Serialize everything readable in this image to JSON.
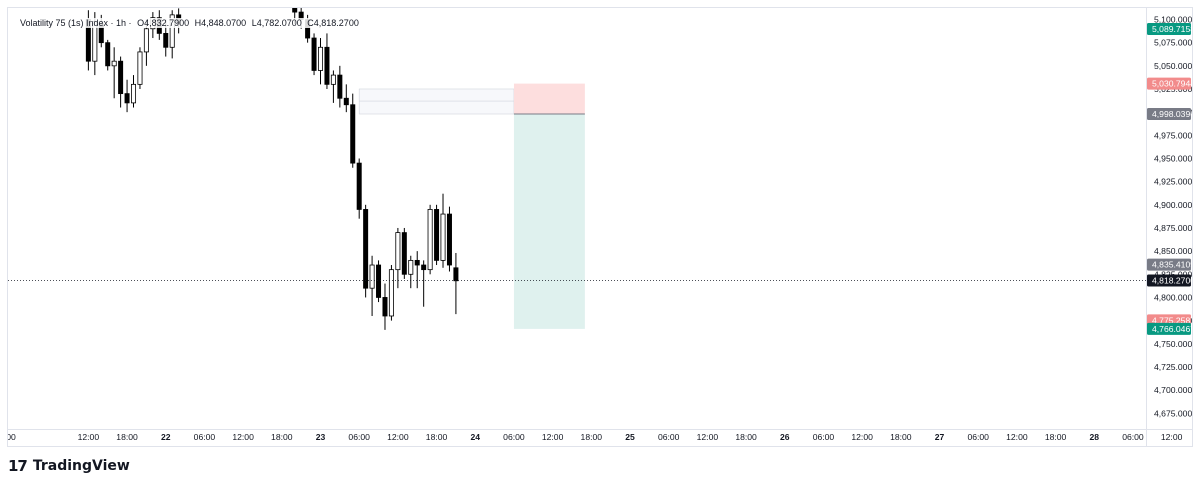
{
  "legend": {
    "symbol": "Volatility 75 (1s) Index · 1h ·",
    "open": "O4,832.7900",
    "high": "H4,848.0700",
    "low": "L4,782.0700",
    "close": "C4,818.2700"
  },
  "branding": {
    "logo_text": "TradingView",
    "logo_icon": "tradingview-logo-icon"
  },
  "colors": {
    "up": "#ffffff",
    "down": "#000000",
    "stop_zone": "#fddede",
    "target_zone": "#dff1ee",
    "green_tag": "#089981",
    "red_tag": "#f28b8b",
    "gray_tag": "#787b86"
  },
  "chart_data": {
    "type": "candlestick",
    "title": "Volatility 75 (1s) Index · 1h",
    "ylim": [
      4655,
      5115
    ],
    "y_ticks": [
      "5,100.0000",
      "5,075.0000",
      "5,050.0000",
      "5,025.0000",
      "5,000.0000",
      "4,975.0000",
      "4,950.0000",
      "4,925.0000",
      "4,900.0000",
      "4,875.0000",
      "4,850.0000",
      "4,825.0000",
      "4,800.0000",
      "4,775.0000",
      "4,750.0000",
      "4,725.0000",
      "4,700.0000",
      "4,675.0000"
    ],
    "y_tick_values": [
      5100,
      5075,
      5050,
      5025,
      5000,
      4975,
      4950,
      4925,
      4900,
      4875,
      4850,
      4825,
      4800,
      4775,
      4750,
      4725,
      4700,
      4675
    ],
    "x_ticks": [
      "00",
      "12:00",
      "18:00",
      "22",
      "06:00",
      "12:00",
      "18:00",
      "23",
      "06:00",
      "12:00",
      "18:00",
      "24",
      "06:00",
      "12:00",
      "18:00",
      "25",
      "06:00",
      "12:00",
      "18:00",
      "26",
      "06:00",
      "12:00",
      "18:00",
      "27",
      "06:00",
      "12:00",
      "18:00",
      "28",
      "06:00",
      "12:00"
    ],
    "x_tick_bold": [
      false,
      false,
      false,
      true,
      false,
      false,
      false,
      true,
      false,
      false,
      false,
      true,
      false,
      false,
      false,
      true,
      false,
      false,
      false,
      true,
      false,
      false,
      false,
      true,
      false,
      false,
      false,
      true,
      false,
      false
    ],
    "x_tick_hours": [
      0,
      12,
      18,
      24,
      30,
      36,
      42,
      48,
      54,
      60,
      66,
      72,
      78,
      84,
      90,
      96,
      102,
      108,
      114,
      120,
      126,
      132,
      138,
      144,
      150,
      156,
      162,
      168,
      174,
      180
    ],
    "price_labels": [
      {
        "text": "5,089.7158",
        "value": 5089.7158,
        "color": "green"
      },
      {
        "text": "5,030.7944",
        "value": 5030.7944,
        "color": "red"
      },
      {
        "text": "4,998.0396",
        "value": 4998.0396,
        "color": "gray"
      },
      {
        "text": "4,835.4109",
        "value": 4835.4109,
        "color": "gray"
      },
      {
        "text": "4,818.2700",
        "value": 4818.27,
        "color": "black"
      },
      {
        "text": "4,775.2587",
        "value": 4775.2587,
        "color": "red"
      },
      {
        "text": "4,766.0467",
        "value": 4766.0467,
        "color": "green"
      }
    ],
    "current_price": 4818.27,
    "position": {
      "side": "short",
      "entry": 4998.0396,
      "stop": 5030.7944,
      "target": 4766.0467,
      "start_hour": 78,
      "end_hour": 89
    },
    "fvg_zone": {
      "top": 5025,
      "bottom": 4998,
      "mid": 5012,
      "start_hour": 54,
      "end_hour": 78
    },
    "candles": [
      {
        "t": 12,
        "o": 5100,
        "h": 5110,
        "l": 5045,
        "c": 5055
      },
      {
        "t": 13,
        "o": 5055,
        "h": 5108,
        "l": 5040,
        "c": 5098
      },
      {
        "t": 14,
        "o": 5095,
        "h": 5105,
        "l": 5070,
        "c": 5075
      },
      {
        "t": 15,
        "o": 5075,
        "h": 5078,
        "l": 5045,
        "c": 5050
      },
      {
        "t": 16,
        "o": 5050,
        "h": 5070,
        "l": 5015,
        "c": 5055
      },
      {
        "t": 17,
        "o": 5055,
        "h": 5060,
        "l": 5005,
        "c": 5020
      },
      {
        "t": 18,
        "o": 5020,
        "h": 5035,
        "l": 5000,
        "c": 5010
      },
      {
        "t": 19,
        "o": 5010,
        "h": 5040,
        "l": 5005,
        "c": 5030
      },
      {
        "t": 20,
        "o": 5030,
        "h": 5070,
        "l": 5025,
        "c": 5065
      },
      {
        "t": 21,
        "o": 5065,
        "h": 5100,
        "l": 5050,
        "c": 5090
      },
      {
        "t": 22,
        "o": 5090,
        "h": 5108,
        "l": 5080,
        "c": 5102
      },
      {
        "t": 23,
        "o": 5102,
        "h": 5110,
        "l": 5078,
        "c": 5085
      },
      {
        "t": 24,
        "o": 5085,
        "h": 5100,
        "l": 5060,
        "c": 5070
      },
      {
        "t": 25,
        "o": 5070,
        "h": 5110,
        "l": 5058,
        "c": 5105
      },
      {
        "t": 26,
        "o": 5105,
        "h": 5112,
        "l": 5085,
        "c": 5095
      },
      {
        "t": 44,
        "o": 5112,
        "h": 5114,
        "l": 5095,
        "c": 5108
      },
      {
        "t": 45,
        "o": 5108,
        "h": 5114,
        "l": 5090,
        "c": 5100
      },
      {
        "t": 46,
        "o": 5100,
        "h": 5105,
        "l": 5075,
        "c": 5080
      },
      {
        "t": 47,
        "o": 5080,
        "h": 5085,
        "l": 5040,
        "c": 5045
      },
      {
        "t": 48,
        "o": 5045,
        "h": 5080,
        "l": 5030,
        "c": 5070
      },
      {
        "t": 49,
        "o": 5070,
        "h": 5085,
        "l": 5025,
        "c": 5030
      },
      {
        "t": 50,
        "o": 5030,
        "h": 5045,
        "l": 5010,
        "c": 5040
      },
      {
        "t": 51,
        "o": 5040,
        "h": 5050,
        "l": 5005,
        "c": 5015
      },
      {
        "t": 52,
        "o": 5015,
        "h": 5030,
        "l": 5000,
        "c": 5008
      },
      {
        "t": 53,
        "o": 5008,
        "h": 5020,
        "l": 4940,
        "c": 4945
      },
      {
        "t": 54,
        "o": 4945,
        "h": 4950,
        "l": 4885,
        "c": 4895
      },
      {
        "t": 55,
        "o": 4895,
        "h": 4900,
        "l": 4800,
        "c": 4810
      },
      {
        "t": 56,
        "o": 4810,
        "h": 4845,
        "l": 4780,
        "c": 4835
      },
      {
        "t": 57,
        "o": 4835,
        "h": 4840,
        "l": 4795,
        "c": 4800
      },
      {
        "t": 58,
        "o": 4800,
        "h": 4815,
        "l": 4765,
        "c": 4780
      },
      {
        "t": 59,
        "o": 4780,
        "h": 4835,
        "l": 4775,
        "c": 4830
      },
      {
        "t": 60,
        "o": 4830,
        "h": 4875,
        "l": 4810,
        "c": 4870
      },
      {
        "t": 61,
        "o": 4870,
        "h": 4875,
        "l": 4820,
        "c": 4825
      },
      {
        "t": 62,
        "o": 4825,
        "h": 4845,
        "l": 4810,
        "c": 4840
      },
      {
        "t": 63,
        "o": 4840,
        "h": 4850,
        "l": 4810,
        "c": 4835
      },
      {
        "t": 64,
        "o": 4835,
        "h": 4840,
        "l": 4790,
        "c": 4830
      },
      {
        "t": 65,
        "o": 4830,
        "h": 4900,
        "l": 4825,
        "c": 4895
      },
      {
        "t": 66,
        "o": 4895,
        "h": 4900,
        "l": 4835,
        "c": 4840
      },
      {
        "t": 67,
        "o": 4840,
        "h": 4912,
        "l": 4832,
        "c": 4890
      },
      {
        "t": 68,
        "o": 4890,
        "h": 4898,
        "l": 4828,
        "c": 4835
      },
      {
        "t": 69,
        "o": 4832,
        "h": 4848,
        "l": 4782,
        "c": 4818
      }
    ]
  }
}
